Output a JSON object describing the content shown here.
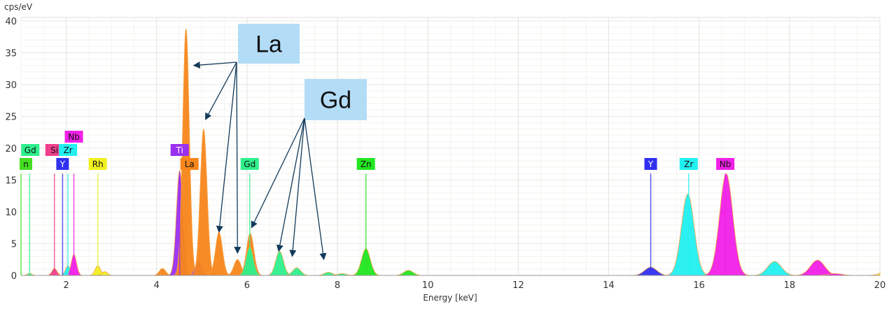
{
  "chart_data": {
    "type": "area",
    "title": "",
    "xlabel": "Energy [keV]",
    "ylabel": "cps/eV",
    "xlim": [
      1,
      20
    ],
    "ylim": [
      0,
      40
    ],
    "xticks": [
      2,
      4,
      6,
      8,
      10,
      12,
      14,
      16,
      18,
      20
    ],
    "yticks": [
      0,
      5,
      10,
      15,
      20,
      25,
      30,
      35,
      40
    ],
    "grid": true,
    "colors": {
      "La": "#f7861b",
      "Gd": "#2ef08c",
      "Zn": "#22e622",
      "Y": "#3030f0",
      "Zr": "#22f0f0",
      "Nb": "#f020e6",
      "Ti": "#9a2ff0",
      "Si": "#f0408c",
      "Rh": "#f0f020",
      "n": "#44dd22"
    },
    "peaks": [
      {
        "element": "La",
        "energy": 4.13,
        "height": 1.1
      },
      {
        "element": "Ti",
        "energy": 4.51,
        "height": 16.5
      },
      {
        "element": "La",
        "energy": 4.65,
        "height": 38.8
      },
      {
        "element": "Ti",
        "energy": 4.93,
        "height": 2.3
      },
      {
        "element": "La",
        "energy": 5.04,
        "height": 23.0
      },
      {
        "element": "La",
        "energy": 5.38,
        "height": 6.8
      },
      {
        "element": "La",
        "energy": 5.79,
        "height": 2.5
      },
      {
        "element": "La",
        "energy": 6.07,
        "height": 6.6
      },
      {
        "element": "Gd",
        "energy": 6.06,
        "height": 4.5
      },
      {
        "element": "Gd",
        "energy": 6.72,
        "height": 3.8
      },
      {
        "element": "Gd",
        "energy": 7.1,
        "height": 1.2
      },
      {
        "element": "Gd",
        "energy": 7.8,
        "height": 0.5
      },
      {
        "element": "Gd",
        "energy": 8.1,
        "height": 0.3
      },
      {
        "element": "Zn",
        "energy": 8.63,
        "height": 4.2
      },
      {
        "element": "Zn",
        "energy": 9.57,
        "height": 0.8
      },
      {
        "element": "Si",
        "energy": 1.74,
        "height": 1.1
      },
      {
        "element": "Zr",
        "energy": 2.04,
        "height": 1.5
      },
      {
        "element": "Nb",
        "energy": 2.17,
        "height": 3.3
      },
      {
        "element": "Rh",
        "energy": 2.7,
        "height": 1.5
      },
      {
        "element": "Rh",
        "energy": 2.85,
        "height": 0.6
      },
      {
        "element": "Gd",
        "energy": 1.19,
        "height": 0.3
      },
      {
        "element": "Y",
        "energy": 14.93,
        "height": 1.3
      },
      {
        "element": "Zr",
        "energy": 15.75,
        "height": 12.8
      },
      {
        "element": "Nb",
        "energy": 16.6,
        "height": 16.0
      },
      {
        "element": "Zr",
        "energy": 17.67,
        "height": 2.2
      },
      {
        "element": "Nb",
        "energy": 18.62,
        "height": 2.4
      },
      {
        "element": "Nb",
        "energy": 19.0,
        "height": 0.3
      },
      {
        "element": "Rh",
        "energy": 20.2,
        "height": 0.6
      }
    ],
    "markers": [
      {
        "element": "n",
        "energy": 1.0
      },
      {
        "element": "Gd",
        "energy": 1.19
      },
      {
        "element": "Si",
        "energy": 1.74
      },
      {
        "element": "Y",
        "energy": 1.92
      },
      {
        "element": "Zr",
        "energy": 2.04
      },
      {
        "element": "Nb",
        "energy": 2.17
      },
      {
        "element": "Rh",
        "energy": 2.7
      },
      {
        "element": "Ti",
        "energy": 4.51
      },
      {
        "element": "La",
        "energy": 4.65
      },
      {
        "element": "Gd",
        "energy": 6.06
      },
      {
        "element": "Zn",
        "energy": 8.63
      },
      {
        "element": "Y",
        "energy": 14.93
      },
      {
        "element": "Zr",
        "energy": 15.77
      },
      {
        "element": "Nb",
        "energy": 16.58
      }
    ],
    "annotations": [
      {
        "text": "La",
        "color": "#b3dcf7",
        "targets": [
          [
            4.82,
            33.0
          ],
          [
            5.08,
            24.5
          ],
          [
            5.38,
            6.8
          ],
          [
            5.79,
            3.5
          ]
        ]
      },
      {
        "text": "Gd",
        "color": "#b3dcf7",
        "targets": [
          [
            6.1,
            7.5
          ],
          [
            6.7,
            3.8
          ],
          [
            7.0,
            3.0
          ],
          [
            7.7,
            2.5
          ]
        ]
      }
    ]
  }
}
